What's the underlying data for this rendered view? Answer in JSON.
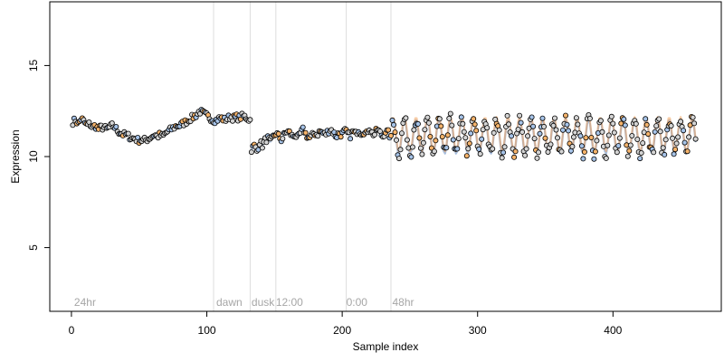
{
  "chart_data": {
    "type": "scatter",
    "xlabel": "Sample index",
    "ylabel": "Expression",
    "xlim": [
      -16,
      480
    ],
    "ylim": [
      1.5,
      18.5
    ],
    "xticks": [
      0,
      100,
      200,
      300,
      400
    ],
    "yticks": [
      5,
      10,
      15
    ],
    "grid": false,
    "colors": {
      "fill_light": "#d4d4d4",
      "fill_blue": "#a6c3e8",
      "fill_orange": "#f5b36b",
      "trace_blue": "#8aa9d6",
      "trace_orange": "#f0a35c",
      "vline": "#dcdcdc",
      "annotation": "#a6a6a6"
    },
    "annotations": [
      {
        "label": "24hr",
        "x": 2
      },
      {
        "label": "dawn",
        "x": 107
      },
      {
        "label": "dusk",
        "x": 133
      },
      {
        "label": "12:00",
        "x": 151
      },
      {
        "label": "0:00",
        "x": 203
      },
      {
        "label": "48hr",
        "x": 237
      }
    ],
    "vlines": [
      105,
      132,
      151,
      203,
      236
    ],
    "segments": [
      {
        "x_start": 1,
        "x_end": 132,
        "values": [
          11.9,
          12.0,
          11.8,
          12.1,
          11.9,
          11.7,
          11.8,
          11.6,
          11.7,
          11.5,
          11.6,
          11.6,
          11.5,
          11.6,
          11.7,
          11.6,
          11.4,
          11.3,
          11.2,
          11.2,
          11.1,
          11.0,
          11.0,
          10.9,
          10.9,
          10.9,
          10.9,
          11.0,
          11.1,
          11.2,
          11.1,
          11.2,
          11.1,
          11.3,
          11.4,
          11.5,
          11.6,
          11.7,
          11.7,
          11.8,
          11.9,
          12.0,
          12.1,
          12.2,
          12.3,
          12.5,
          12.4,
          12.3,
          12.2,
          12.1,
          12.0,
          12.0,
          12.1,
          12.1,
          12.0,
          12.1,
          12.2,
          12.1,
          12.2,
          12.1,
          12.2,
          12.2,
          12.1,
          12.0
        ]
      },
      {
        "x_start": 133,
        "x_end": 236,
        "values": [
          10.4,
          10.6,
          10.3,
          10.8,
          10.6,
          10.9,
          11.0,
          10.8,
          11.1,
          11.3,
          11.1,
          10.9,
          11.2,
          11.4,
          11.3,
          11.1,
          11.2,
          11.0,
          11.3,
          11.5,
          11.2,
          11.0,
          11.1,
          11.3,
          11.2,
          11.4,
          11.3,
          11.2,
          11.4,
          11.5,
          11.3,
          11.1,
          11.3,
          11.2,
          11.4,
          11.3,
          11.1,
          11.4,
          11.2,
          11.5,
          11.3,
          11.4,
          11.2,
          11.6,
          11.3,
          11.2,
          11.5,
          11.3,
          11.1,
          11.4,
          11.3,
          11.0
        ]
      },
      {
        "x_start": 237,
        "x_end": 461,
        "periodic": {
          "mean": 11.1,
          "amplitude": 0.95,
          "period": 8.5,
          "scatter": 0.32
        }
      }
    ]
  }
}
